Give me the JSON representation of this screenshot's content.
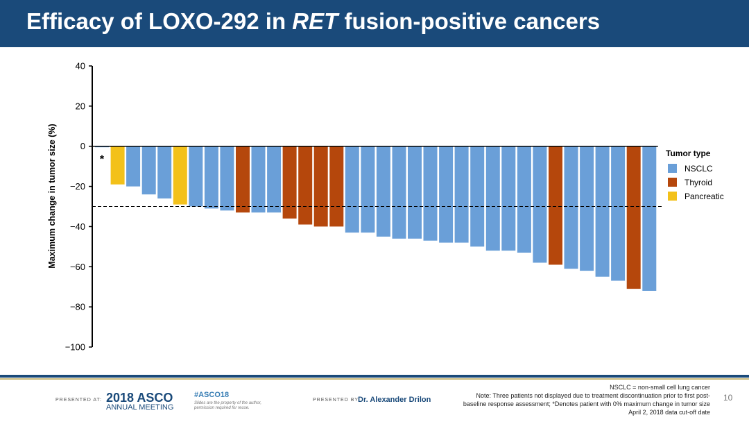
{
  "header": {
    "title_pre": "Efficacy of LOXO-292 in ",
    "title_italic": "RET",
    "title_post": " fusion-positive cancers"
  },
  "chart_data": {
    "type": "bar",
    "title": "",
    "xlabel": "",
    "ylabel": "Maximum change in tumor size (%)",
    "ylim": [
      -100,
      40
    ],
    "yticks": [
      40,
      20,
      0,
      -20,
      -40,
      -60,
      -80,
      -100
    ],
    "ytick_labels": [
      "40",
      "20",
      "0",
      "−20",
      "−40",
      "−60",
      "−80",
      "−100"
    ],
    "reference_line": -30,
    "annotation": "*",
    "legend": {
      "title": "Tumor type",
      "position": "right",
      "entries": [
        {
          "name": "NSCLC",
          "color": "#6a9fd8"
        },
        {
          "name": "Thyroid",
          "color": "#b5470c"
        },
        {
          "name": "Pancreatic",
          "color": "#f3c11a"
        }
      ]
    },
    "bars": [
      {
        "type": "NSCLC",
        "value": 0
      },
      {
        "type": "Pancreatic",
        "value": -19
      },
      {
        "type": "NSCLC",
        "value": -20
      },
      {
        "type": "NSCLC",
        "value": -24
      },
      {
        "type": "NSCLC",
        "value": -26
      },
      {
        "type": "Pancreatic",
        "value": -29
      },
      {
        "type": "NSCLC",
        "value": -30
      },
      {
        "type": "NSCLC",
        "value": -31
      },
      {
        "type": "NSCLC",
        "value": -32
      },
      {
        "type": "Thyroid",
        "value": -33
      },
      {
        "type": "NSCLC",
        "value": -33
      },
      {
        "type": "NSCLC",
        "value": -33
      },
      {
        "type": "Thyroid",
        "value": -36
      },
      {
        "type": "Thyroid",
        "value": -39
      },
      {
        "type": "Thyroid",
        "value": -40
      },
      {
        "type": "Thyroid",
        "value": -40
      },
      {
        "type": "NSCLC",
        "value": -43
      },
      {
        "type": "NSCLC",
        "value": -43
      },
      {
        "type": "NSCLC",
        "value": -45
      },
      {
        "type": "NSCLC",
        "value": -46
      },
      {
        "type": "NSCLC",
        "value": -46
      },
      {
        "type": "NSCLC",
        "value": -47
      },
      {
        "type": "NSCLC",
        "value": -48
      },
      {
        "type": "NSCLC",
        "value": -48
      },
      {
        "type": "NSCLC",
        "value": -50
      },
      {
        "type": "NSCLC",
        "value": -52
      },
      {
        "type": "NSCLC",
        "value": -52
      },
      {
        "type": "NSCLC",
        "value": -53
      },
      {
        "type": "NSCLC",
        "value": -58
      },
      {
        "type": "Thyroid",
        "value": -59
      },
      {
        "type": "NSCLC",
        "value": -61
      },
      {
        "type": "NSCLC",
        "value": -62
      },
      {
        "type": "NSCLC",
        "value": -65
      },
      {
        "type": "NSCLC",
        "value": -67
      },
      {
        "type": "Thyroid",
        "value": -71
      },
      {
        "type": "NSCLC",
        "value": -72
      }
    ]
  },
  "footer": {
    "presented_at": "PRESENTED AT:",
    "asco_year": "2018 ASCO",
    "asco_sub": "ANNUAL MEETING",
    "hashtag": "#ASCO18",
    "rights": "Slides are the property of the author, permission required for reuse.",
    "presented_by": "PRESENTED BY:",
    "presenter": "Dr. Alexander Drilon",
    "notes": [
      "NSCLC = non-small cell lung cancer",
      "Note: Three patients not displayed due to treatment discontinuation prior to first post-",
      "baseline response assessment; *Denotes patient with 0% maximum change in tumor size",
      "April 2, 2018 data cut-off date"
    ],
    "page_number": "10"
  }
}
